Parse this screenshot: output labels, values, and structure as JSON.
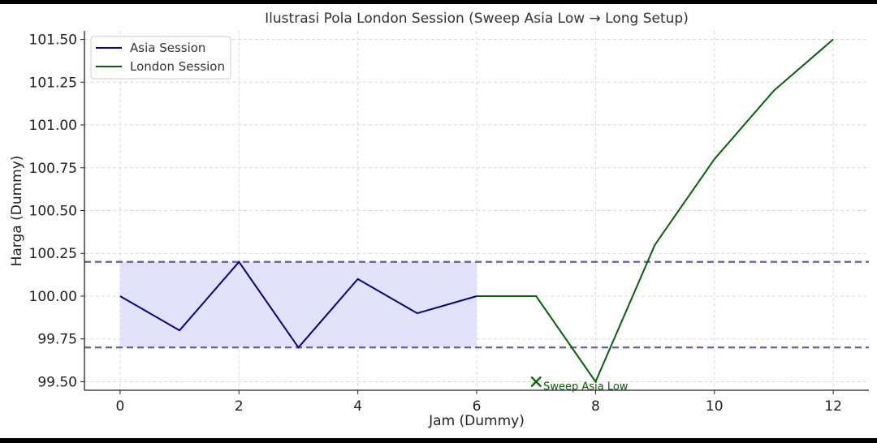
{
  "chart_data": {
    "type": "line",
    "title": "Ilustrasi Pola London Session (Sweep Asia Low → Long Setup)",
    "xlabel": "Jam (Dummy)",
    "ylabel": "Harga (Dummy)",
    "xlim": [
      -0.6,
      12.6
    ],
    "ylim": [
      99.45,
      101.55
    ],
    "xticks": [
      0,
      2,
      4,
      6,
      8,
      10,
      12
    ],
    "xtick_labels": [
      "0",
      "2",
      "4",
      "6",
      "8",
      "10",
      "12"
    ],
    "yticks": [
      99.5,
      99.75,
      100.0,
      100.25,
      100.5,
      100.75,
      101.0,
      101.25,
      101.5
    ],
    "ytick_labels": [
      "99.50",
      "99.75",
      "100.00",
      "100.25",
      "100.50",
      "100.75",
      "101.00",
      "101.25",
      "101.50"
    ],
    "grid": true,
    "legend_position": "top-left",
    "series": [
      {
        "name": "Asia Session",
        "color": "#00008b",
        "x": [
          0,
          1,
          2,
          3,
          4,
          5,
          6
        ],
        "y": [
          100.0,
          99.8,
          100.2,
          99.7,
          100.1,
          99.9,
          100.0
        ]
      },
      {
        "name": "London Session",
        "color": "#006400",
        "x": [
          6,
          7,
          8,
          9,
          10,
          11,
          12
        ],
        "y": [
          100.0,
          100.0,
          99.5,
          100.3,
          100.8,
          101.2,
          101.5
        ]
      }
    ],
    "reference_lines": [
      {
        "y": 100.2,
        "style": "dashed",
        "color": "#3a3aa0"
      },
      {
        "y": 99.7,
        "style": "dashed",
        "color": "#3a3aa0"
      }
    ],
    "shaded_region": {
      "x": [
        0,
        6
      ],
      "y": [
        99.7,
        100.2
      ],
      "color": "#e0e0fa"
    },
    "annotations": [
      {
        "x": 7,
        "y": 99.5,
        "marker": "x",
        "text": "Sweep Asia Low",
        "color": "#006400"
      }
    ]
  }
}
